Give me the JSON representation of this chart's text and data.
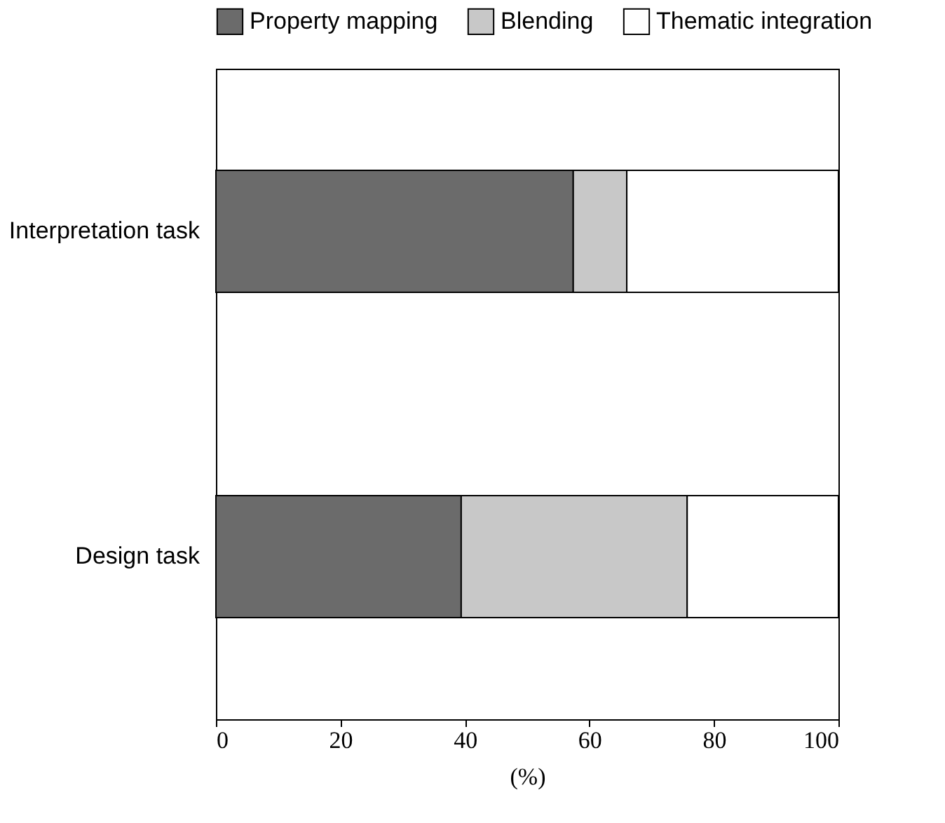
{
  "chart_data": {
    "type": "bar",
    "orientation": "horizontal",
    "stacked": true,
    "xlabel": "(%)",
    "categories": [
      "Interpretation task",
      "Design task"
    ],
    "series": [
      {
        "name": "Property mapping",
        "color": "#6b6b6b",
        "values": [
          57.4,
          39.4
        ]
      },
      {
        "name": "Blending",
        "color": "#c8c8c8",
        "values": [
          8.6,
          36.3
        ]
      },
      {
        "name": "Thematic integration",
        "color": "#ffffff",
        "values": [
          34.0,
          24.3
        ]
      }
    ],
    "xlim": [
      0,
      100
    ],
    "xticks": [
      0,
      20,
      40,
      60,
      80,
      100
    ],
    "grid": false,
    "legend": "top"
  }
}
